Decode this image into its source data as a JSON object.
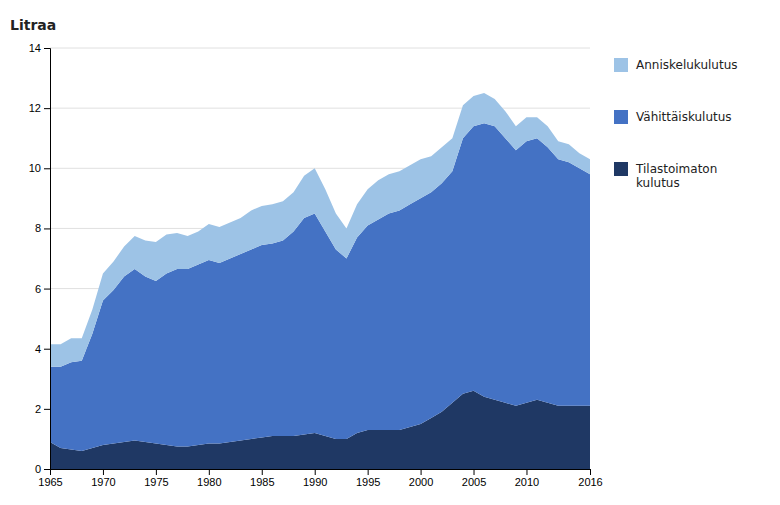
{
  "chart_data": {
    "type": "area",
    "stacked": true,
    "ylabel": "Litraa",
    "x": [
      1965,
      1966,
      1967,
      1968,
      1969,
      1970,
      1971,
      1972,
      1973,
      1974,
      1975,
      1976,
      1977,
      1978,
      1979,
      1980,
      1981,
      1982,
      1983,
      1984,
      1985,
      1986,
      1987,
      1988,
      1989,
      1990,
      1991,
      1992,
      1993,
      1994,
      1995,
      1996,
      1997,
      1998,
      1999,
      2000,
      2001,
      2002,
      2003,
      2004,
      2005,
      2006,
      2007,
      2008,
      2009,
      2010,
      2011,
      2012,
      2013,
      2014,
      2015,
      2016
    ],
    "series": [
      {
        "name": "Tilastoimaton\nkulutus",
        "color": "#1f3864",
        "values": [
          0.9,
          0.7,
          0.65,
          0.6,
          0.7,
          0.8,
          0.85,
          0.9,
          0.95,
          0.9,
          0.85,
          0.8,
          0.75,
          0.75,
          0.8,
          0.85,
          0.85,
          0.9,
          0.95,
          1.0,
          1.05,
          1.1,
          1.1,
          1.1,
          1.15,
          1.2,
          1.1,
          1.0,
          1.0,
          1.2,
          1.3,
          1.3,
          1.3,
          1.3,
          1.4,
          1.5,
          1.7,
          1.9,
          2.2,
          2.5,
          2.6,
          2.4,
          2.3,
          2.2,
          2.1,
          2.2,
          2.3,
          2.2,
          2.1,
          2.1,
          2.1,
          2.1
        ]
      },
      {
        "name": "Vähittäiskulutus",
        "color": "#4472c4",
        "values": [
          2.5,
          2.7,
          2.9,
          3.0,
          3.8,
          4.8,
          5.1,
          5.5,
          5.7,
          5.5,
          5.4,
          5.7,
          5.9,
          5.9,
          6.0,
          6.1,
          6.0,
          6.1,
          6.2,
          6.3,
          6.4,
          6.4,
          6.5,
          6.8,
          7.2,
          7.3,
          6.8,
          6.3,
          6.0,
          6.5,
          6.8,
          7.0,
          7.2,
          7.3,
          7.4,
          7.5,
          7.5,
          7.6,
          7.7,
          8.5,
          8.8,
          9.1,
          9.1,
          8.8,
          8.5,
          8.7,
          8.7,
          8.5,
          8.2,
          8.1,
          7.9,
          7.7
        ]
      },
      {
        "name": "Anniskelukulutus",
        "color": "#9dc3e6",
        "values": [
          0.75,
          0.75,
          0.8,
          0.75,
          0.8,
          0.9,
          0.95,
          1.0,
          1.1,
          1.2,
          1.3,
          1.3,
          1.2,
          1.1,
          1.1,
          1.2,
          1.2,
          1.2,
          1.2,
          1.3,
          1.3,
          1.3,
          1.3,
          1.3,
          1.4,
          1.5,
          1.4,
          1.2,
          1.0,
          1.1,
          1.2,
          1.3,
          1.3,
          1.3,
          1.3,
          1.3,
          1.2,
          1.2,
          1.1,
          1.1,
          1.0,
          1.0,
          0.9,
          0.9,
          0.8,
          0.8,
          0.7,
          0.7,
          0.6,
          0.6,
          0.5,
          0.5
        ]
      }
    ],
    "xlim": [
      1965,
      2016
    ],
    "ylim": [
      0,
      14
    ],
    "xticks": [
      1965,
      1970,
      1975,
      1980,
      1985,
      1990,
      1995,
      2000,
      2005,
      2010,
      2016
    ],
    "yticks": [
      0,
      2,
      4,
      6,
      8,
      10,
      12,
      14
    ],
    "grid": true,
    "legend": "right"
  }
}
